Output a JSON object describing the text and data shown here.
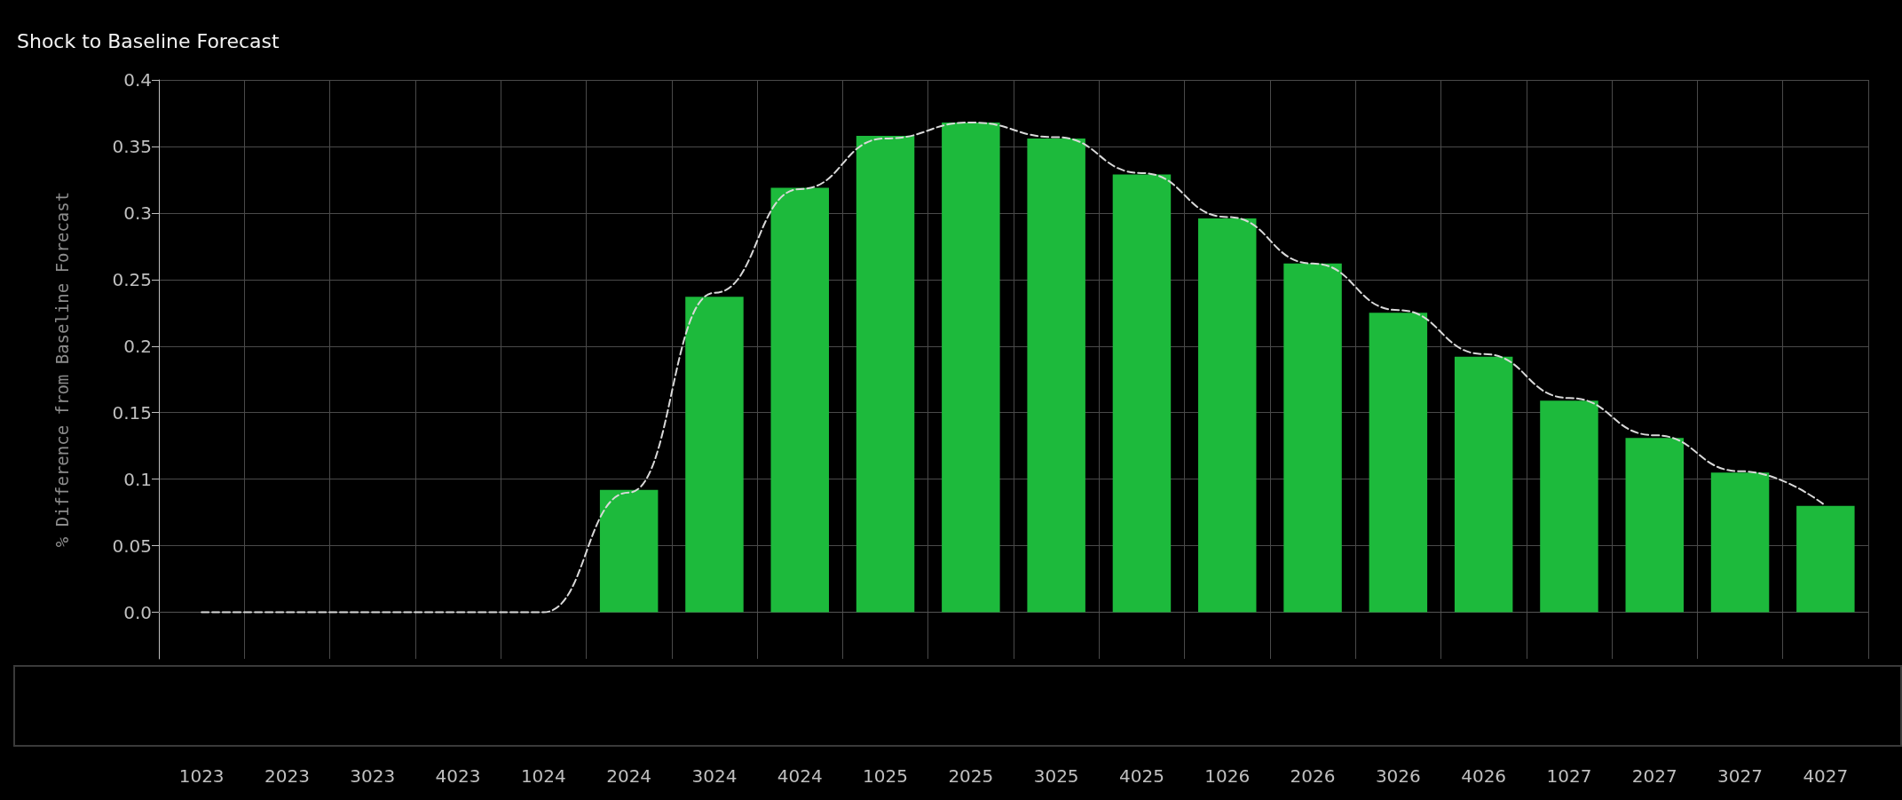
{
  "chart_data": {
    "type": "bar",
    "title": "Shock to Baseline Forecast",
    "ylabel": "% Difference from Baseline Forecast",
    "categories": [
      "1023",
      "2023",
      "3023",
      "4023",
      "1024",
      "2024",
      "3024",
      "4024",
      "1025",
      "2025",
      "3025",
      "4025",
      "1026",
      "2026",
      "3026",
      "4026",
      "1027",
      "2027",
      "3027",
      "4027"
    ],
    "series": [
      {
        "color": "#1dba3c",
        "values": [
          null,
          null,
          null,
          null,
          null,
          0.092,
          0.237,
          0.319,
          0.358,
          0.368,
          0.356,
          0.329,
          0.296,
          0.262,
          0.225,
          0.192,
          0.159,
          0.131,
          0.105,
          0.08
        ]
      },
      {
        "type": "line",
        "color": "#d9d9d9",
        "line_style": "dashed",
        "marker": "none",
        "values": [
          0,
          0,
          0,
          0,
          0,
          0.09,
          0.24,
          0.318,
          0.356,
          0.368,
          0.357,
          0.33,
          0.297,
          0.262,
          0.227,
          0.194,
          0.161,
          0.133,
          0.106,
          0.08
        ]
      }
    ],
    "ylim": [
      -0.035,
      0.4
    ],
    "yticks": [
      {
        "value": 0,
        "label": "0.0"
      },
      0.05,
      0.1,
      0.15,
      0.2,
      0.25,
      0.3,
      0.35,
      0.4
    ],
    "grid": true
  }
}
